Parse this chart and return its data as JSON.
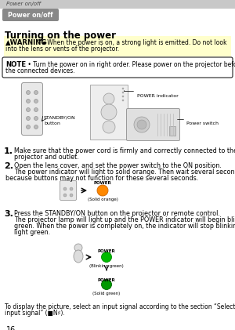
{
  "page_number": "16",
  "bg_color": "#ffffff",
  "header_bar_color": "#c8c8c8",
  "header_text": "Power on/off",
  "badge_bg": "#888888",
  "badge_text": "Power on/off",
  "section_title": "Turning on the power",
  "warning_bg": "#ffffcc",
  "warning_label": "▲WARNING",
  "warning_line1": " ►When the power is on, a strong light is emitted. Do not look",
  "warning_line2": "into the lens or vents of the projector.",
  "note_label": "NOTE",
  "note_line1": " • Turn the power on in right order. Please power on the projector before",
  "note_line2": "the connected devices.",
  "step1_num": "1.",
  "step1_line1": "Make sure that the power cord is firmly and correctly connected to the",
  "step1_line2": "projector and outlet.",
  "step2_num": "2.",
  "step2_line1": "Open the lens cover, and set the power switch to the ON position.",
  "step2_line2": "The power indicator will light to solid orange. Then wait several seconds",
  "step2_line3": "because buttons may not function for these several seconds.",
  "step2_label": "(Solid orange)",
  "step3_num": "3.",
  "step3_line1": "Press the STANDBY/ON button on the projector or remote control.",
  "step3_line2": "The projector lamp will light up and the POWER indicator will begin blinking",
  "step3_line3": "green. When the power is completely on, the indicator will stop blinking and",
  "step3_line4": "light green.",
  "step3_label1": "(Blinking green)",
  "step3_label2": "(Solid green)",
  "footer_line1": "To display the picture, select an input signal according to the section “Selecting an",
  "footer_line2": "input signal” (■N♯).",
  "standby_label1": "STANDBY/ON",
  "standby_label2": "button",
  "power_indicator_label": "POWER indicator",
  "power_switch_label": "Power switch",
  "orange_color": "#ff8800",
  "green_color": "#00bb00",
  "power_text": "POWER"
}
